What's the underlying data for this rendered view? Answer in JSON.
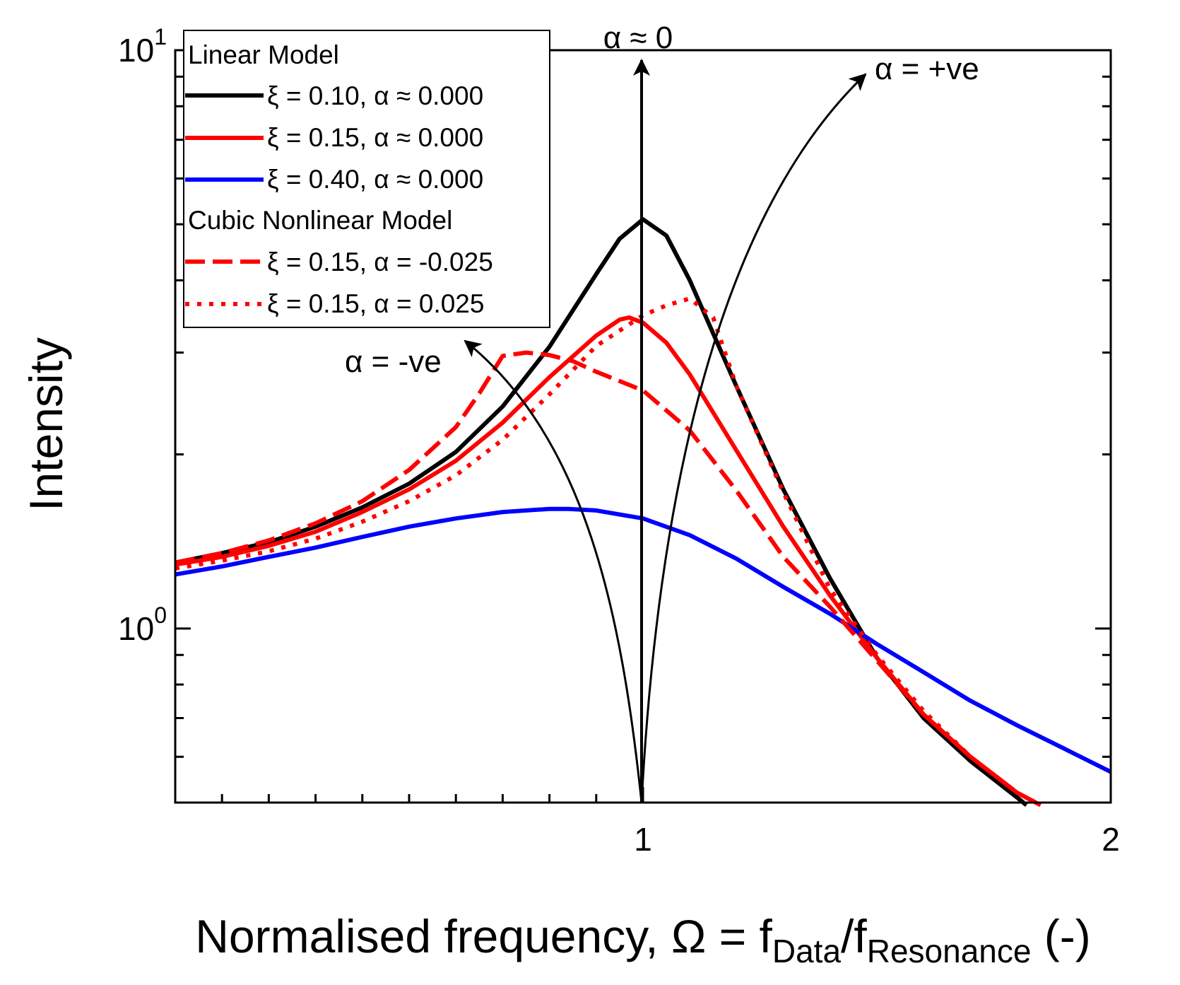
{
  "chart_data": {
    "type": "line",
    "xlabel": {
      "main": "Normalised frequency, Ω = f",
      "sub1": "Data",
      "mid": "/f",
      "sub2": "Resonance",
      "tail": " (-)"
    },
    "ylabel": "Intensity",
    "xscale": "linear",
    "yscale": "log",
    "xlim": [
      0,
      2
    ],
    "ylim": [
      0.5,
      10
    ],
    "xticks": [
      {
        "value": 1,
        "label": "1"
      },
      {
        "value": 2,
        "label": "2"
      }
    ],
    "yticks": [
      {
        "value": 1,
        "base": "10",
        "exp": "0"
      },
      {
        "value": 10,
        "base": "10",
        "exp": "1"
      }
    ],
    "grid": false,
    "legend": {
      "placement": "top-left",
      "groups": [
        {
          "title": "Linear Model",
          "entries": [
            {
              "label": "ξ = 0.10, α ≈ 0.000",
              "series": 0
            },
            {
              "label": "ξ = 0.15, α ≈ 0.000",
              "series": 1
            },
            {
              "label": "ξ = 0.40, α ≈ 0.000",
              "series": 2
            }
          ]
        },
        {
          "title": "Cubic Nonlinear Model",
          "entries": [
            {
              "label": "ξ = 0.15, α = -0.025",
              "series": 3
            },
            {
              "label": "ξ = 0.15, α =  0.025",
              "series": 4
            }
          ]
        }
      ]
    },
    "series": [
      {
        "color": "#000000",
        "style": "solid",
        "width": 6,
        "x": [
          0.0,
          0.1,
          0.2,
          0.3,
          0.4,
          0.5,
          0.6,
          0.7,
          0.8,
          0.9,
          0.95,
          1.0,
          1.05,
          1.1,
          1.2,
          1.3,
          1.4,
          1.5,
          1.6,
          1.7,
          1.8,
          1.82
        ],
        "y": [
          1.3,
          1.35,
          1.41,
          1.5,
          1.62,
          1.78,
          2.02,
          2.42,
          3.07,
          4.1,
          4.72,
          5.1,
          4.78,
          4.0,
          2.62,
          1.74,
          1.22,
          0.89,
          0.7,
          0.59,
          0.51,
          0.495
        ]
      },
      {
        "color": "#ff0000",
        "style": "solid",
        "width": 6,
        "x": [
          0.0,
          0.1,
          0.2,
          0.3,
          0.4,
          0.5,
          0.6,
          0.7,
          0.8,
          0.9,
          0.95,
          0.97,
          1.0,
          1.05,
          1.1,
          1.2,
          1.3,
          1.4,
          1.5,
          1.6,
          1.7,
          1.8,
          1.85
        ],
        "y": [
          1.29,
          1.33,
          1.39,
          1.47,
          1.59,
          1.74,
          1.95,
          2.27,
          2.72,
          3.21,
          3.42,
          3.45,
          3.38,
          3.12,
          2.75,
          2.03,
          1.5,
          1.14,
          0.89,
          0.71,
          0.6,
          0.52,
          0.495
        ]
      },
      {
        "color": "#0000ff",
        "style": "solid",
        "width": 6,
        "x": [
          0.0,
          0.1,
          0.2,
          0.3,
          0.4,
          0.5,
          0.6,
          0.7,
          0.8,
          0.84,
          0.9,
          1.0,
          1.1,
          1.2,
          1.3,
          1.4,
          1.5,
          1.6,
          1.7,
          1.8,
          1.9,
          2.0
        ],
        "y": [
          1.24,
          1.28,
          1.33,
          1.38,
          1.44,
          1.5,
          1.55,
          1.59,
          1.61,
          1.61,
          1.6,
          1.55,
          1.45,
          1.32,
          1.18,
          1.06,
          0.94,
          0.84,
          0.75,
          0.68,
          0.62,
          0.565
        ]
      },
      {
        "color": "#ff0000",
        "style": "dashed",
        "width": 6,
        "x": [
          0.0,
          0.1,
          0.2,
          0.3,
          0.4,
          0.5,
          0.6,
          0.65,
          0.7,
          0.75,
          0.8,
          0.85,
          0.9,
          1.0,
          1.1,
          1.2,
          1.3,
          1.4,
          1.5,
          1.6,
          1.7,
          1.8,
          1.85
        ],
        "y": [
          1.3,
          1.35,
          1.42,
          1.52,
          1.66,
          1.88,
          2.23,
          2.55,
          2.96,
          3.0,
          2.97,
          2.9,
          2.78,
          2.58,
          2.2,
          1.73,
          1.33,
          1.09,
          0.88,
          0.71,
          0.6,
          0.52,
          0.495
        ]
      },
      {
        "color": "#ff0000",
        "style": "dotted",
        "width": 6,
        "x": [
          0.0,
          0.1,
          0.2,
          0.3,
          0.4,
          0.5,
          0.6,
          0.7,
          0.8,
          0.9,
          1.0,
          1.05,
          1.1,
          1.15,
          1.2,
          1.3,
          1.4,
          1.5,
          1.6,
          1.7,
          1.8,
          1.85
        ],
        "y": [
          1.27,
          1.31,
          1.36,
          1.43,
          1.53,
          1.66,
          1.84,
          2.12,
          2.54,
          3.08,
          3.48,
          3.62,
          3.72,
          3.45,
          2.62,
          1.72,
          1.17,
          0.9,
          0.72,
          0.6,
          0.52,
          0.495
        ]
      }
    ],
    "annotations": [
      {
        "text": "α ≈ 0"
      },
      {
        "text": "α = +ve"
      },
      {
        "text": "α = -ve"
      }
    ]
  }
}
